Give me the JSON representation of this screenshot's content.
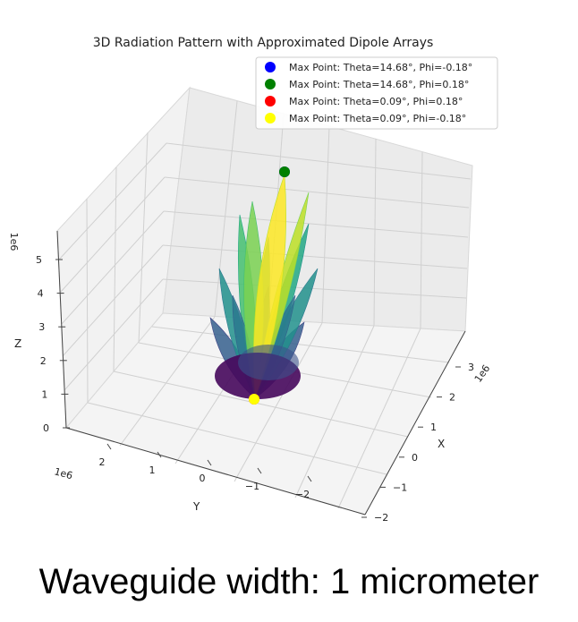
{
  "chart_data": {
    "type": "surface3d",
    "title": "3D Radiation Pattern with Approximated Dipole Arrays",
    "xlabel": "X",
    "ylabel": "Y",
    "zlabel": "Z",
    "x_offset_label": "1e6",
    "y_offset_label": "1e6",
    "z_offset_label": "1e6",
    "x_ticks": [
      "−2",
      "−1",
      "0",
      "1",
      "2",
      "3"
    ],
    "y_ticks": [
      "−2",
      "−1",
      "0",
      "1",
      "2"
    ],
    "z_ticks": [
      "0",
      "1",
      "2",
      "3",
      "4",
      "5"
    ],
    "xlim": [
      -2.2,
      3.4
    ],
    "ylim": [
      -2.6,
      2.6
    ],
    "zlim": [
      0,
      5.8
    ],
    "colormap": "viridis",
    "legend_position": "upper-right",
    "legend": [
      {
        "label": "Max Point: Theta=14.68°, Phi=-0.18°",
        "color": "#0000ff"
      },
      {
        "label": "Max Point: Theta=14.68°, Phi=0.18°",
        "color": "#008000"
      },
      {
        "label": "Max Point: Theta=0.09°, Phi=0.18°",
        "color": "#ff0000"
      },
      {
        "label": "Max Point: Theta=0.09°, Phi=-0.18°",
        "color": "#ffff00"
      }
    ],
    "max_points_z": [
      5.8,
      5.8,
      0.0,
      0.0
    ]
  },
  "caption": "Waveguide width: 1 micrometer"
}
